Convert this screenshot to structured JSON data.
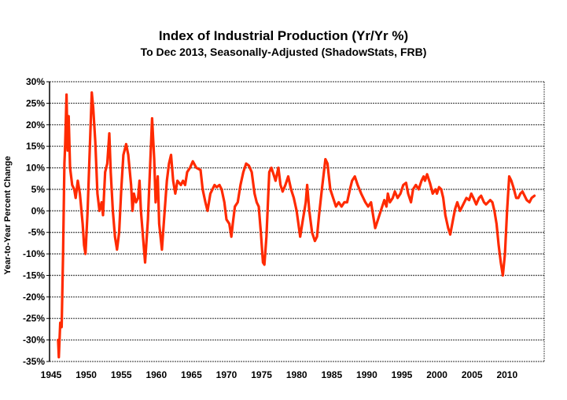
{
  "chart_data": {
    "type": "line",
    "title": "Index of Industrial Production (Yr/Yr %)",
    "subtitle": "To Dec 2013, Seasonally-Adjusted (ShadowStats, FRB)",
    "xlabel": "",
    "ylabel": "Year-to-Year Percent Change",
    "xlim": [
      1945,
      2015
    ],
    "ylim": [
      -35,
      30
    ],
    "grid": true,
    "line_color": "#ff2a00",
    "x_ticks": [
      "1945",
      "1950",
      "1955",
      "1960",
      "1965",
      "1970",
      "1975",
      "1980",
      "1985",
      "1990",
      "1995",
      "2000",
      "2005",
      "2010"
    ],
    "x_tick_values": [
      1945,
      1950,
      1955,
      1960,
      1965,
      1970,
      1975,
      1980,
      1985,
      1990,
      1995,
      2000,
      2005,
      2010
    ],
    "y_ticks": [
      "30%",
      "25%",
      "20%",
      "15%",
      "10%",
      "5%",
      "0%",
      "-5%",
      "-10%",
      "-15%",
      "-20%",
      "-25%",
      "-30%",
      "-35%"
    ],
    "y_tick_values": [
      30,
      25,
      20,
      15,
      10,
      5,
      0,
      -5,
      -10,
      -15,
      -20,
      -25,
      -30,
      -35
    ],
    "series": [
      {
        "name": "Industrial Production Yr/Yr %",
        "x": [
          1946.0,
          1946.1,
          1946.3,
          1946.5,
          1946.7,
          1946.9,
          1947.0,
          1947.2,
          1947.35,
          1947.5,
          1947.7,
          1948.0,
          1948.3,
          1948.5,
          1948.8,
          1949.1,
          1949.5,
          1949.7,
          1949.9,
          1950.2,
          1950.5,
          1950.8,
          1951.0,
          1951.3,
          1951.6,
          1951.9,
          1952.2,
          1952.4,
          1952.7,
          1953.0,
          1953.3,
          1953.5,
          1953.8,
          1954.1,
          1954.4,
          1954.7,
          1955.0,
          1955.3,
          1955.7,
          1956.0,
          1956.4,
          1956.6,
          1956.8,
          1957.1,
          1957.4,
          1957.6,
          1957.8,
          1958.2,
          1958.4,
          1958.8,
          1959.1,
          1959.4,
          1959.7,
          1959.9,
          1960.2,
          1960.4,
          1960.8,
          1961.1,
          1961.5,
          1961.8,
          1962.1,
          1962.4,
          1962.7,
          1963.0,
          1963.5,
          1963.8,
          1964.1,
          1964.4,
          1964.8,
          1965.2,
          1965.7,
          1966.3,
          1966.6,
          1967.0,
          1967.3,
          1967.7,
          1968.0,
          1968.3,
          1968.6,
          1969.0,
          1969.3,
          1969.7,
          1970.0,
          1970.4,
          1970.7,
          1970.9,
          1971.2,
          1971.6,
          1972.0,
          1972.4,
          1972.8,
          1973.2,
          1973.6,
          1974.0,
          1974.3,
          1974.6,
          1974.9,
          1975.2,
          1975.4,
          1975.7,
          1976.1,
          1976.4,
          1976.8,
          1977.0,
          1977.4,
          1977.7,
          1978.0,
          1978.4,
          1978.8,
          1979.2,
          1979.6,
          1980.0,
          1980.5,
          1980.9,
          1981.3,
          1981.5,
          1981.8,
          1982.2,
          1982.6,
          1982.9,
          1983.2,
          1983.6,
          1984.1,
          1984.4,
          1984.8,
          1985.2,
          1985.6,
          1986.0,
          1986.4,
          1986.8,
          1987.2,
          1987.6,
          1987.9,
          1988.3,
          1988.7,
          1989.2,
          1989.8,
          1990.2,
          1990.6,
          1990.9,
          1991.2,
          1991.6,
          1992.0,
          1992.5,
          1992.8,
          1993.0,
          1993.3,
          1993.7,
          1994.0,
          1994.4,
          1994.8,
          1995.2,
          1995.6,
          1995.9,
          1996.3,
          1996.6,
          1997.0,
          1997.4,
          1997.8,
          1998.1,
          1998.3,
          1998.6,
          1999.0,
          1999.4,
          1999.8,
          2000.0,
          2000.3,
          2000.6,
          2000.9,
          2001.2,
          2001.6,
          2001.9,
          2002.3,
          2002.6,
          2002.9,
          2003.3,
          2003.6,
          2003.9,
          2004.2,
          2004.6,
          2004.9,
          2005.2,
          2005.6,
          2006.0,
          2006.3,
          2006.7,
          2007.0,
          2007.3,
          2007.6,
          2007.9,
          2008.2,
          2008.5,
          2008.8,
          2009.1,
          2009.4,
          2009.7,
          2010.0,
          2010.3,
          2010.6,
          2010.9,
          2011.3,
          2011.6,
          2011.9,
          2012.2,
          2012.5,
          2012.8,
          2013.2,
          2013.5,
          2013.9
        ],
        "values": [
          -30,
          -34,
          -26,
          -27,
          -10,
          11,
          15,
          27,
          14,
          22,
          10,
          6,
          5,
          3,
          7,
          4,
          -3,
          -8,
          -10,
          0,
          14,
          27.5,
          24,
          16,
          4,
          0,
          2,
          -1,
          9,
          11,
          18,
          9,
          0,
          -6,
          -9,
          -5,
          5,
          13,
          15.5,
          13,
          6,
          0,
          4,
          2,
          3,
          7,
          0,
          -8,
          -12,
          -2,
          10,
          21.5,
          12,
          2,
          8,
          -3,
          -9,
          -2,
          7,
          11,
          13,
          7,
          4,
          7,
          6,
          7,
          6,
          9,
          10,
          11.5,
          10,
          9.5,
          5,
          2,
          0,
          4,
          5,
          6,
          5.5,
          6,
          5,
          2,
          -2,
          -3,
          -6,
          -3,
          1,
          2,
          6,
          9,
          11,
          10.5,
          9,
          4,
          2,
          1,
          -5,
          -12,
          -12.5,
          -6,
          9,
          10,
          8,
          7,
          10,
          6,
          4.5,
          6,
          8,
          5,
          3,
          0,
          -6,
          -2,
          2,
          6,
          0,
          -5,
          -7,
          -6,
          -1,
          5,
          12,
          11,
          5,
          3,
          1,
          2,
          1,
          2,
          2,
          5,
          7,
          8,
          6,
          4,
          2,
          1,
          2,
          -1,
          -4,
          -2,
          0,
          2.5,
          1,
          4,
          2,
          3,
          4.5,
          3,
          4,
          6,
          6.5,
          4,
          2,
          5,
          6,
          5,
          7,
          8,
          7,
          8.5,
          6.5,
          4,
          5,
          4,
          5.5,
          5,
          3,
          -1,
          -4,
          -5.5,
          -2,
          0.5,
          2,
          0,
          1,
          2,
          3,
          2.5,
          4,
          3,
          1.5,
          3,
          3.5,
          2,
          1.5,
          2,
          2.5,
          2,
          0,
          -3,
          -8,
          -12,
          -15,
          -10,
          0,
          8,
          7,
          5.5,
          3,
          3,
          4,
          4.5,
          3.5,
          2.5,
          2,
          3,
          3.5
        ]
      }
    ]
  }
}
